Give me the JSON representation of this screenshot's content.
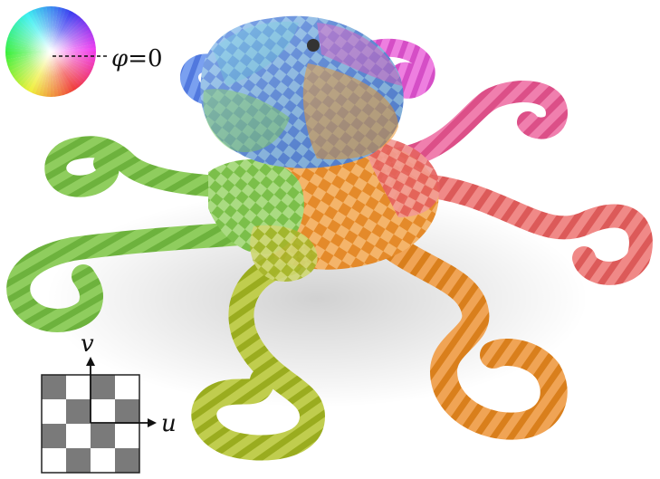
{
  "color_wheel": {
    "label_symbol": "φ",
    "label_equals": "=",
    "label_value": "0"
  },
  "axes": {
    "v_label": "v",
    "u_label": "u"
  },
  "colors": {
    "blue": "#4f74e3",
    "magenta": "#e45fd0",
    "pink": "#e96186",
    "red": "#ea6a6a",
    "orange": "#e9962f",
    "yellow_green": "#b0c030",
    "green": "#77c250",
    "cyan": "#64c7e8"
  }
}
